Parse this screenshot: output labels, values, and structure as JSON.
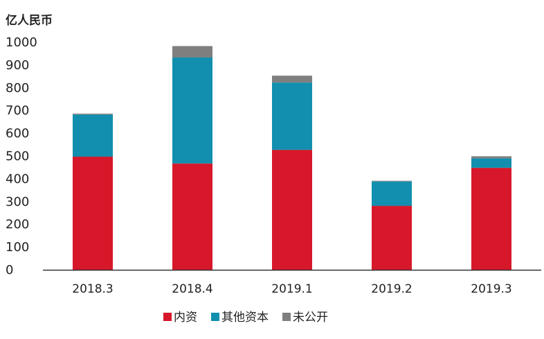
{
  "chart_data": {
    "type": "bar",
    "stacked": true,
    "unit_label": "亿人民币",
    "categories": [
      "2018.3",
      "2018.4",
      "2019.1",
      "2019.2",
      "2019.3"
    ],
    "series": [
      {
        "name": "内资",
        "color": "#d7182a",
        "values": [
          497,
          467,
          527,
          281,
          448
        ]
      },
      {
        "name": "其他资本",
        "color": "#128fae",
        "values": [
          185,
          466,
          296,
          107,
          42
        ]
      },
      {
        "name": "未公开",
        "color": "#7f7f7f",
        "values": [
          4,
          50,
          30,
          3,
          9
        ]
      }
    ],
    "y_ticks": [
      0,
      100,
      200,
      300,
      400,
      500,
      600,
      700,
      800,
      900,
      1000
    ],
    "ylim": [
      0,
      1000
    ],
    "grid": false,
    "legend_position": "bottom"
  }
}
